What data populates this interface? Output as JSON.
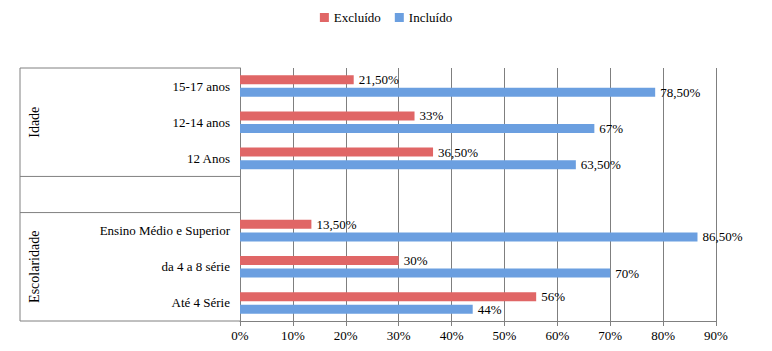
{
  "chart_data": {
    "type": "bar",
    "orientation": "horizontal",
    "categories": [
      "Até 4 Série",
      "da 4 a 8 série",
      "Ensino Médio e Superior",
      null,
      "12 Anos",
      "12-14 anos",
      "15-17 anos"
    ],
    "series": [
      {
        "name": "Excluído",
        "color": "#e06666",
        "values": [
          56,
          30,
          13.5,
          null,
          36.5,
          33,
          21.5
        ],
        "value_labels": [
          "56%",
          "30%",
          "13,50%",
          null,
          "36,50%",
          "33%",
          "21,50%"
        ]
      },
      {
        "name": "Incluído",
        "color": "#6b9fe0",
        "values": [
          44,
          70,
          86.5,
          null,
          63.5,
          67,
          78.5
        ],
        "value_labels": [
          "44%",
          "70%",
          "86,50%",
          null,
          "63,50%",
          "67%",
          "78,50%"
        ]
      }
    ],
    "xlim": [
      0,
      90
    ],
    "xticks": [
      {
        "value": 0,
        "label": "0%"
      },
      {
        "value": 10,
        "label": "10%"
      },
      {
        "value": 20,
        "label": "20%"
      },
      {
        "value": 30,
        "label": "30%"
      },
      {
        "value": 40,
        "label": "40%"
      },
      {
        "value": 50,
        "label": "50%"
      },
      {
        "value": 60,
        "label": "60%"
      },
      {
        "value": 70,
        "label": "70%"
      },
      {
        "value": 80,
        "label": "80%"
      },
      {
        "value": 90,
        "label": "90%"
      }
    ],
    "grid": true,
    "data_labels": true,
    "legend": "top",
    "group_labels": [
      {
        "text": "Escolaridade",
        "categories": [
          "Até 4 Série",
          "da 4 a 8 série",
          "Ensino Médio e Superior"
        ]
      },
      {
        "text": "Idade",
        "categories": [
          "12 Anos",
          "12-14 anos",
          "15-17 anos"
        ]
      }
    ]
  }
}
